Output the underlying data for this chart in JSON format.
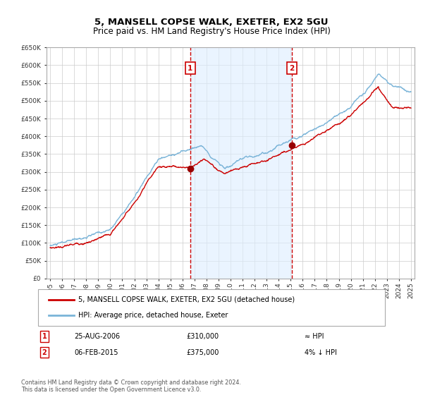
{
  "title": "5, MANSELL COPSE WALK, EXETER, EX2 5GU",
  "subtitle": "Price paid vs. HM Land Registry's House Price Index (HPI)",
  "legend_line1": "5, MANSELL COPSE WALK, EXETER, EX2 5GU (detached house)",
  "legend_line2": "HPI: Average price, detached house, Exeter",
  "note1_date": "25-AUG-2006",
  "note1_price": "£310,000",
  "note1_hpi": "≈ HPI",
  "note2_date": "06-FEB-2015",
  "note2_price": "£375,000",
  "note2_hpi": "4% ↓ HPI",
  "footer": "Contains HM Land Registry data © Crown copyright and database right 2024.\nThis data is licensed under the Open Government Licence v3.0.",
  "hpi_color": "#7ab4d8",
  "price_color": "#cc0000",
  "dot_color": "#990000",
  "bg_shaded": "#ddeeff",
  "vline_color": "#cc0000",
  "box_color": "#cc0000",
  "grid_color": "#cccccc",
  "ylim": [
    0,
    650000
  ],
  "yticks": [
    0,
    50000,
    100000,
    150000,
    200000,
    250000,
    300000,
    350000,
    400000,
    450000,
    500000,
    550000,
    600000,
    650000
  ],
  "year_start": 1995,
  "year_end": 2025,
  "purchase1_year": 2006.65,
  "purchase1_price": 310000,
  "purchase2_year": 2015.09,
  "purchase2_price": 375000
}
